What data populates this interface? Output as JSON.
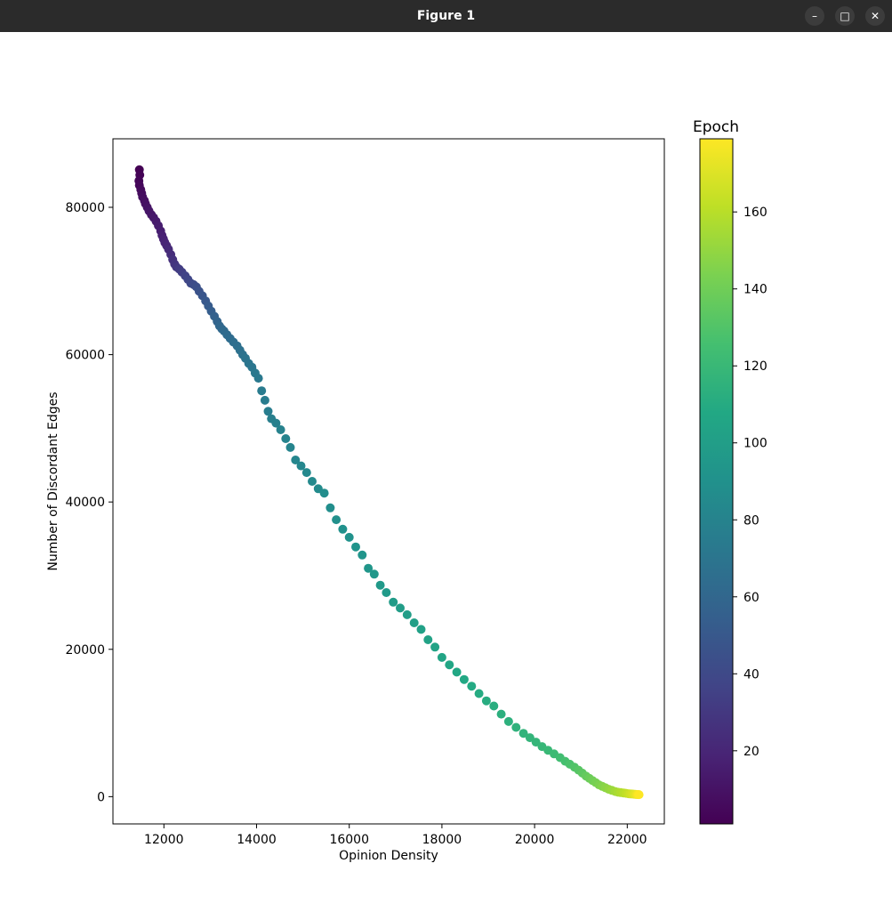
{
  "window": {
    "title": "Figure 1",
    "minimize_icon": "minimize-icon",
    "maximize_icon": "maximize-icon",
    "close_icon": "close-icon"
  },
  "chart_data": {
    "type": "scatter",
    "title": "",
    "xlabel": "Opinion Density",
    "ylabel": "Number of Discordant Edges",
    "xlim": [
      10900,
      22800
    ],
    "ylim": [
      -3700,
      89300
    ],
    "xticks": [
      12000,
      14000,
      16000,
      18000,
      20000,
      22000
    ],
    "yticks": [
      0,
      20000,
      40000,
      60000,
      80000
    ],
    "grid": false,
    "colorbar": {
      "title": "Epoch",
      "range": [
        1,
        179
      ],
      "ticks": [
        20,
        40,
        60,
        80,
        100,
        120,
        140,
        160
      ],
      "colormap": "viridis"
    },
    "series": [
      {
        "x": [
          11470,
          11480,
          11460,
          11470,
          11500,
          11520,
          11540,
          11580,
          11600,
          11640,
          11680,
          11730,
          11780,
          11830,
          11880,
          11930,
          11960,
          11990,
          12020,
          12060,
          12100,
          12150,
          12190,
          12230,
          12270,
          12330,
          12390,
          12460,
          12520,
          12580,
          12640,
          12700,
          12760,
          12830,
          12900,
          12960,
          13020,
          13090,
          13150,
          13200,
          13250,
          13300,
          13360,
          13430,
          13500,
          13580,
          13640,
          13700,
          13760,
          13830,
          13900,
          13970,
          14040,
          14110,
          14180,
          14250,
          14320,
          14420,
          14520,
          14630,
          14730,
          14840,
          14960,
          15080,
          15200,
          15330,
          15460,
          15590,
          15720,
          15860,
          16000,
          16140,
          16280,
          16410,
          16540,
          16670,
          16800,
          16950,
          17100,
          17250,
          17400,
          17550,
          17700,
          17850,
          18000,
          18160,
          18320,
          18480,
          18640,
          18800,
          18960,
          19120,
          19280,
          19440,
          19600,
          19760,
          19900,
          20030,
          20160,
          20290,
          20420,
          20550,
          20660,
          20760,
          20860,
          20950,
          21030,
          21110,
          21180,
          21250,
          21320,
          21390,
          21460,
          21530,
          21600,
          21670,
          21740,
          21800,
          21860,
          21920,
          21970,
          22020,
          22060,
          22100,
          22140,
          22170,
          22200,
          22220,
          22240,
          22255
        ],
        "y": [
          85100,
          84400,
          83600,
          83000,
          82400,
          81900,
          81400,
          80900,
          80500,
          80000,
          79500,
          79000,
          78600,
          78100,
          77500,
          76800,
          76200,
          75700,
          75200,
          74800,
          74300,
          73600,
          72900,
          72300,
          71900,
          71600,
          71200,
          70700,
          70200,
          69700,
          69500,
          69200,
          68600,
          68000,
          67300,
          66600,
          65900,
          65200,
          64500,
          63900,
          63500,
          63200,
          62700,
          62200,
          61700,
          61200,
          60600,
          60000,
          59500,
          58800,
          58300,
          57500,
          56800,
          55100,
          53800,
          52300,
          51300,
          50700,
          49800,
          48600,
          47400,
          45700,
          44900,
          44000,
          42800,
          41800,
          41200,
          39200,
          37600,
          36300,
          35200,
          33900,
          32800,
          31000,
          30200,
          28700,
          27700,
          26400,
          25600,
          24700,
          23600,
          22700,
          21300,
          20300,
          18900,
          17900,
          16900,
          15900,
          15000,
          14000,
          13000,
          12300,
          11200,
          10200,
          9400,
          8600,
          8000,
          7400,
          6800,
          6300,
          5800,
          5300,
          4800,
          4400,
          4000,
          3600,
          3200,
          2800,
          2500,
          2200,
          1900,
          1600,
          1400,
          1200,
          1000,
          850,
          700,
          600,
          550,
          500,
          450,
          400,
          380,
          360,
          340,
          320,
          300,
          290,
          280,
          270
        ],
        "epochs": [
          1,
          2,
          3,
          4,
          5,
          6,
          7,
          8,
          9,
          10,
          11,
          12,
          13,
          14,
          15,
          16,
          17,
          18,
          19,
          20,
          22,
          24,
          26,
          28,
          30,
          32,
          34,
          36,
          38,
          40,
          42,
          44,
          46,
          48,
          50,
          52,
          54,
          56,
          58,
          60,
          61,
          62,
          63,
          64,
          65,
          66,
          67,
          68,
          69,
          70,
          71,
          72,
          73,
          74,
          75,
          76,
          77,
          78,
          79,
          80,
          81,
          82,
          83,
          84,
          85,
          86,
          87,
          88,
          89,
          90,
          91,
          92,
          93,
          94,
          95,
          96,
          97,
          98,
          99,
          100,
          101,
          102,
          103,
          104,
          105,
          106,
          107,
          108,
          109,
          110,
          111,
          112,
          113,
          114,
          115,
          116,
          117,
          118,
          119,
          120,
          122,
          124,
          126,
          128,
          130,
          132,
          134,
          136,
          138,
          140,
          142,
          144,
          146,
          148,
          150,
          152,
          154,
          156,
          158,
          160,
          162,
          164,
          166,
          168,
          170,
          172,
          174,
          176,
          178,
          179
        ]
      }
    ]
  }
}
